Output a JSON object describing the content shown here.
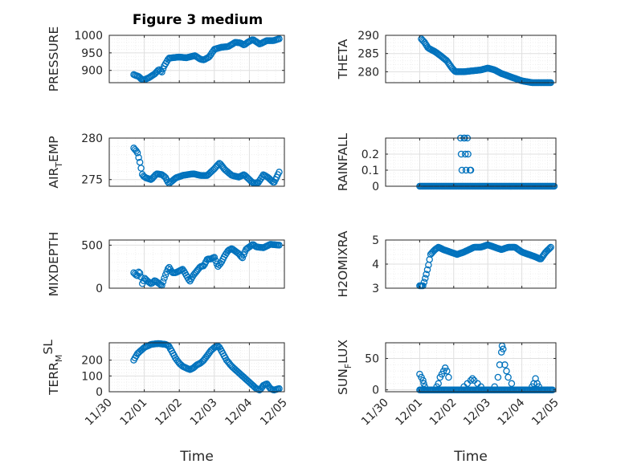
{
  "colors": {
    "marker": "#0072BD",
    "axis": "#262626",
    "grid_major": "#dfdfdf",
    "grid_minor": "#ececec"
  },
  "chart_data": {
    "type": "scatter",
    "figure_title": "Figure 3 medium",
    "x_tick_labels": [
      "11/30",
      "12/01",
      "12/02",
      "12/03",
      "12/04",
      "12/05"
    ],
    "xlabel": "Time",
    "subplots": [
      {
        "ylabel": "PRESSURE",
        "ylabel_sub": "",
        "ylabel_sup": "",
        "title": "Figure 3 medium",
        "ylim": [
          865,
          1000
        ],
        "yticks": [
          900,
          950,
          1000
        ],
        "yticklabels": [
          "900",
          "950",
          "1000"
        ],
        "xlabel": "",
        "x_start": 0.7,
        "x_end": 4.85,
        "anchors": [
          [
            0.7,
            888
          ],
          [
            0.85,
            882
          ],
          [
            0.92,
            875
          ],
          [
            1.0,
            873
          ],
          [
            1.15,
            880
          ],
          [
            1.3,
            890
          ],
          [
            1.42,
            903
          ],
          [
            1.5,
            895
          ],
          [
            1.58,
            915
          ],
          [
            1.7,
            935
          ],
          [
            2.0,
            938
          ],
          [
            2.2,
            936
          ],
          [
            2.45,
            942
          ],
          [
            2.6,
            932
          ],
          [
            2.7,
            930
          ],
          [
            2.85,
            938
          ],
          [
            3.0,
            960
          ],
          [
            3.2,
            966
          ],
          [
            3.4,
            968
          ],
          [
            3.6,
            980
          ],
          [
            3.75,
            978
          ],
          [
            3.85,
            972
          ],
          [
            3.95,
            980
          ],
          [
            4.1,
            988
          ],
          [
            4.3,
            975
          ],
          [
            4.5,
            985
          ],
          [
            4.7,
            985
          ],
          [
            4.85,
            990
          ]
        ]
      },
      {
        "ylabel": "THETA",
        "ylabel_sub": "",
        "ylabel_sup": "",
        "title": "",
        "ylim": [
          277,
          290
        ],
        "yticks": [
          280,
          285,
          290
        ],
        "yticklabels": [
          "280",
          "285",
          "290"
        ],
        "xlabel": "",
        "x_start": 1.05,
        "x_end": 4.85,
        "anchors": [
          [
            1.05,
            289
          ],
          [
            1.15,
            288
          ],
          [
            1.25,
            286.5
          ],
          [
            1.45,
            285.5
          ],
          [
            1.6,
            284.5
          ],
          [
            1.8,
            283
          ],
          [
            1.95,
            281
          ],
          [
            2.05,
            280
          ],
          [
            2.3,
            280
          ],
          [
            2.8,
            280.5
          ],
          [
            3.0,
            281
          ],
          [
            3.2,
            280.5
          ],
          [
            3.4,
            279.5
          ],
          [
            3.7,
            278.5
          ],
          [
            4.0,
            277.5
          ],
          [
            4.3,
            277
          ],
          [
            4.6,
            277
          ],
          [
            4.85,
            277
          ]
        ]
      },
      {
        "ylabel": "AIR",
        "ylabel_sub": "T",
        "ylabel_sup": "",
        "ylabel_tail": "EMP",
        "title": "",
        "ylim": [
          274.2,
          280
        ],
        "yticks": [
          275,
          280
        ],
        "yticklabels": [
          "275",
          "280"
        ],
        "xlabel": "",
        "x_start": 0.7,
        "x_end": 4.85,
        "anchors": [
          [
            0.7,
            278.8
          ],
          [
            0.8,
            278.3
          ],
          [
            0.88,
            277
          ],
          [
            0.95,
            275.5
          ],
          [
            1.05,
            275.2
          ],
          [
            1.2,
            275.0
          ],
          [
            1.35,
            275.7
          ],
          [
            1.5,
            275.6
          ],
          [
            1.6,
            275.3
          ],
          [
            1.7,
            274.5
          ],
          [
            1.9,
            275.2
          ],
          [
            2.1,
            275.5
          ],
          [
            2.4,
            275.7
          ],
          [
            2.6,
            275.5
          ],
          [
            2.8,
            275.5
          ],
          [
            3.0,
            276.3
          ],
          [
            3.15,
            277.0
          ],
          [
            3.3,
            276.2
          ],
          [
            3.5,
            275.5
          ],
          [
            3.7,
            275.3
          ],
          [
            3.85,
            275.6
          ],
          [
            4.0,
            275.0
          ],
          [
            4.1,
            274.6
          ],
          [
            4.25,
            274.6
          ],
          [
            4.4,
            275.6
          ],
          [
            4.55,
            275.2
          ],
          [
            4.7,
            274.6
          ],
          [
            4.85,
            275.9
          ]
        ]
      },
      {
        "ylabel": "RAINFALL",
        "ylabel_sub": "",
        "ylabel_sup": "",
        "title": "",
        "ylim": [
          0,
          0.3
        ],
        "yticks": [
          0,
          0.1,
          0.2
        ],
        "yticklabels": [
          "0",
          "0.1",
          "0.2"
        ],
        "xlabel": "",
        "x_start": 1.0,
        "x_end": 4.95,
        "anchors": [
          [
            1.0,
            0
          ],
          [
            4.95,
            0
          ]
        ],
        "spikes": [
          [
            2.2,
            0.3
          ],
          [
            2.22,
            0.2
          ],
          [
            2.24,
            0.1
          ],
          [
            2.3,
            0.3
          ],
          [
            2.32,
            0.3
          ],
          [
            2.34,
            0.2
          ],
          [
            2.36,
            0.1
          ],
          [
            2.4,
            0.3
          ],
          [
            2.42,
            0.2
          ],
          [
            2.48,
            0.1
          ],
          [
            2.5,
            0.1
          ]
        ]
      },
      {
        "ylabel": "MIXDEPTH",
        "ylabel_sub": "",
        "ylabel_sup": "",
        "title": "",
        "ylim": [
          0,
          560
        ],
        "yticks": [
          0,
          500
        ],
        "yticklabels": [
          "0",
          "500"
        ],
        "xlabel": "",
        "x_start": 0.7,
        "x_end": 4.85,
        "anchors": [
          [
            0.7,
            180
          ],
          [
            0.8,
            140
          ],
          [
            0.85,
            200
          ],
          [
            0.9,
            150
          ],
          [
            0.95,
            40
          ],
          [
            1.0,
            120
          ],
          [
            1.1,
            80
          ],
          [
            1.2,
            50
          ],
          [
            1.3,
            90
          ],
          [
            1.4,
            60
          ],
          [
            1.5,
            30
          ],
          [
            1.6,
            150
          ],
          [
            1.7,
            250
          ],
          [
            1.8,
            180
          ],
          [
            1.9,
            180
          ],
          [
            2.0,
            200
          ],
          [
            2.1,
            220
          ],
          [
            2.2,
            150
          ],
          [
            2.3,
            80
          ],
          [
            2.4,
            150
          ],
          [
            2.5,
            200
          ],
          [
            2.6,
            250
          ],
          [
            2.7,
            260
          ],
          [
            2.8,
            340
          ],
          [
            2.9,
            340
          ],
          [
            3.0,
            360
          ],
          [
            3.1,
            250
          ],
          [
            3.2,
            300
          ],
          [
            3.3,
            380
          ],
          [
            3.4,
            440
          ],
          [
            3.5,
            460
          ],
          [
            3.6,
            430
          ],
          [
            3.7,
            400
          ],
          [
            3.8,
            350
          ],
          [
            3.9,
            450
          ],
          [
            4.0,
            480
          ],
          [
            4.1,
            510
          ],
          [
            4.2,
            480
          ],
          [
            4.4,
            470
          ],
          [
            4.6,
            510
          ],
          [
            4.85,
            500
          ]
        ]
      },
      {
        "ylabel": "H2OMIXRA",
        "ylabel_sub": "",
        "ylabel_sup": "",
        "title": "",
        "ylim": [
          3,
          5
        ],
        "yticks": [
          3,
          4,
          5
        ],
        "yticklabels": [
          "3",
          "4",
          "5"
        ],
        "xlabel": "",
        "x_start": 1.0,
        "x_end": 4.85,
        "anchors": [
          [
            1.0,
            3.1
          ],
          [
            1.1,
            3.1
          ],
          [
            1.18,
            3.5
          ],
          [
            1.25,
            3.9
          ],
          [
            1.32,
            4.4
          ],
          [
            1.38,
            4.5
          ],
          [
            1.45,
            4.6
          ],
          [
            1.55,
            4.7
          ],
          [
            1.7,
            4.6
          ],
          [
            1.9,
            4.5
          ],
          [
            2.1,
            4.4
          ],
          [
            2.3,
            4.5
          ],
          [
            2.6,
            4.7
          ],
          [
            2.8,
            4.7
          ],
          [
            3.0,
            4.8
          ],
          [
            3.2,
            4.7
          ],
          [
            3.4,
            4.6
          ],
          [
            3.6,
            4.7
          ],
          [
            3.8,
            4.7
          ],
          [
            4.0,
            4.5
          ],
          [
            4.2,
            4.4
          ],
          [
            4.4,
            4.3
          ],
          [
            4.55,
            4.2
          ],
          [
            4.7,
            4.5
          ],
          [
            4.85,
            4.7
          ]
        ]
      },
      {
        "ylabel": "TERR",
        "ylabel_sub": "M",
        "ylabel_sup": "SL",
        "ylabel_tail": "",
        "title": "",
        "ylim": [
          0,
          310
        ],
        "yticks": [
          0,
          100,
          200
        ],
        "yticklabels": [
          "0",
          "100",
          "200"
        ],
        "xlabel": "Time",
        "x_start": 0.7,
        "x_end": 4.85,
        "anchors": [
          [
            0.7,
            200
          ],
          [
            0.8,
            240
          ],
          [
            0.9,
            260
          ],
          [
            1.0,
            280
          ],
          [
            1.1,
            290
          ],
          [
            1.2,
            300
          ],
          [
            1.4,
            305
          ],
          [
            1.6,
            300
          ],
          [
            1.7,
            290
          ],
          [
            1.8,
            250
          ],
          [
            1.9,
            210
          ],
          [
            2.0,
            180
          ],
          [
            2.1,
            160
          ],
          [
            2.2,
            150
          ],
          [
            2.3,
            140
          ],
          [
            2.4,
            150
          ],
          [
            2.5,
            170
          ],
          [
            2.6,
            180
          ],
          [
            2.7,
            200
          ],
          [
            2.8,
            230
          ],
          [
            2.9,
            260
          ],
          [
            3.0,
            280
          ],
          [
            3.1,
            290
          ],
          [
            3.15,
            280
          ],
          [
            3.25,
            240
          ],
          [
            3.35,
            200
          ],
          [
            3.5,
            160
          ],
          [
            3.6,
            140
          ],
          [
            3.7,
            120
          ],
          [
            3.8,
            100
          ],
          [
            3.9,
            80
          ],
          [
            4.0,
            60
          ],
          [
            4.1,
            40
          ],
          [
            4.2,
            20
          ],
          [
            4.3,
            10
          ],
          [
            4.4,
            40
          ],
          [
            4.5,
            50
          ],
          [
            4.6,
            20
          ],
          [
            4.7,
            10
          ],
          [
            4.85,
            20
          ]
        ]
      },
      {
        "ylabel": "SUN",
        "ylabel_sub": "F",
        "ylabel_sup": "",
        "ylabel_tail": "LUX",
        "title": "",
        "ylim": [
          -3,
          75
        ],
        "yticks": [
          0,
          50
        ],
        "yticklabels": [
          "0",
          "50"
        ],
        "xlabel": "Time",
        "x_start": 1.0,
        "x_end": 4.9,
        "anchors": [
          [
            1.0,
            0
          ],
          [
            4.9,
            0
          ]
        ],
        "bumps": [
          [
            1.0,
            25
          ],
          [
            1.05,
            20
          ],
          [
            1.1,
            15
          ],
          [
            1.12,
            10
          ],
          [
            1.15,
            5
          ],
          [
            1.5,
            5
          ],
          [
            1.55,
            10
          ],
          [
            1.6,
            20
          ],
          [
            1.65,
            25
          ],
          [
            1.7,
            30
          ],
          [
            1.75,
            35
          ],
          [
            1.8,
            30
          ],
          [
            1.85,
            20
          ],
          [
            2.3,
            5
          ],
          [
            2.4,
            10
          ],
          [
            2.5,
            15
          ],
          [
            2.55,
            18
          ],
          [
            2.6,
            15
          ],
          [
            2.7,
            10
          ],
          [
            2.8,
            5
          ],
          [
            3.2,
            5
          ],
          [
            3.3,
            20
          ],
          [
            3.35,
            40
          ],
          [
            3.4,
            60
          ],
          [
            3.42,
            70
          ],
          [
            3.45,
            65
          ],
          [
            3.5,
            40
          ],
          [
            3.55,
            30
          ],
          [
            3.6,
            20
          ],
          [
            3.7,
            10
          ],
          [
            4.3,
            5
          ],
          [
            4.35,
            10
          ],
          [
            4.4,
            18
          ],
          [
            4.45,
            10
          ],
          [
            4.5,
            5
          ]
        ]
      }
    ]
  }
}
